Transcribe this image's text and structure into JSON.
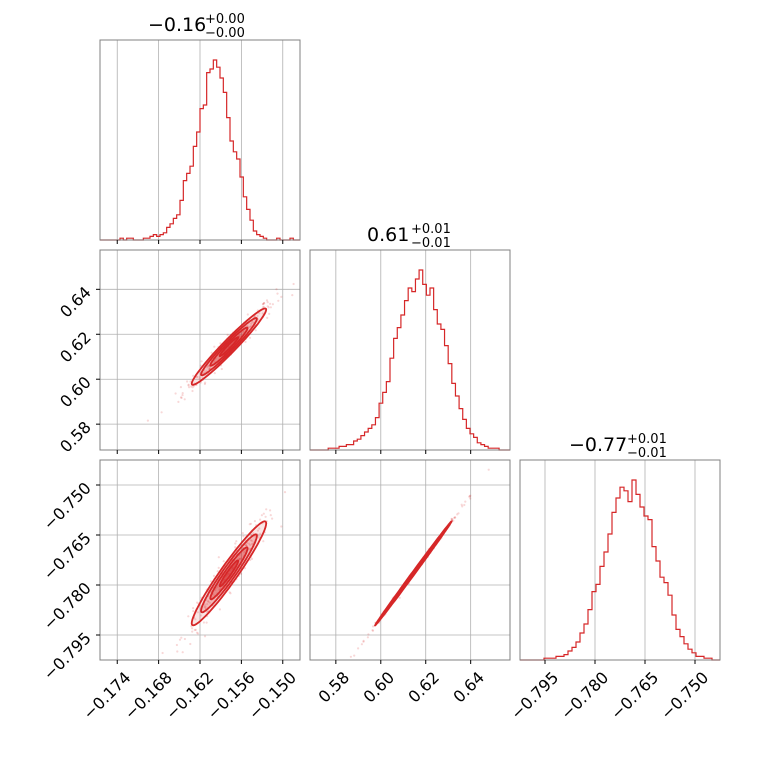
{
  "chart_data": {
    "type": "corner",
    "color": "#d62728",
    "grid": true,
    "parameters": [
      {
        "title": {
          "value": "−0.16",
          "plus": "+0.00",
          "minus": "−0.00"
        },
        "ticks": [
          -0.174,
          -0.168,
          -0.162,
          -0.156,
          -0.15
        ],
        "tick_labels": [
          "−0.174",
          "−0.168",
          "−0.162",
          "−0.156",
          "−0.150"
        ],
        "range": [
          -0.1765,
          -0.1475
        ],
        "hist_center": -0.1578,
        "hist_sigma": 0.0027,
        "hist_bins": [
          0,
          0,
          0,
          0,
          0,
          0,
          1,
          0,
          1,
          1,
          0,
          0,
          0,
          1,
          1,
          2,
          3,
          2,
          3,
          4,
          7,
          9,
          12,
          14,
          22,
          33,
          37,
          41,
          52,
          60,
          73,
          75,
          93,
          95,
          100,
          96,
          90,
          82,
          68,
          55,
          49,
          45,
          35,
          24,
          17,
          11,
          5,
          3,
          2,
          1,
          0,
          0,
          0,
          1,
          0,
          0,
          0,
          1,
          0,
          0
        ]
      },
      {
        "title": {
          "value": "0.61",
          "plus": "+0.01",
          "minus": "−0.01"
        },
        "ticks": [
          0.58,
          0.6,
          0.62,
          0.64
        ],
        "tick_labels": [
          "0.58",
          "0.60",
          "0.62",
          "0.64"
        ],
        "range": [
          0.5685,
          0.6575
        ],
        "hist_center": 0.6145,
        "hist_sigma": 0.0085,
        "hist_bins": [
          0,
          0,
          0,
          0,
          0,
          1,
          1,
          1,
          2,
          2,
          3,
          3,
          5,
          6,
          8,
          10,
          12,
          14,
          18,
          26,
          32,
          38,
          51,
          62,
          68,
          75,
          83,
          90,
          88,
          95,
          100,
          92,
          86,
          90,
          78,
          70,
          67,
          58,
          48,
          37,
          30,
          23,
          17,
          12,
          9,
          7,
          4,
          3,
          2,
          1,
          1,
          1,
          0,
          0,
          0
        ]
      },
      {
        "title": {
          "value": "−0.77",
          "plus": "+0.01",
          "minus": "−0.01"
        },
        "ticks": [
          -0.795,
          -0.78,
          -0.765,
          -0.75
        ],
        "tick_labels": [
          "−0.795",
          "−0.780",
          "−0.765",
          "−0.750"
        ],
        "range": [
          -0.8025,
          -0.7425
        ],
        "hist_center": -0.7765,
        "hist_sigma": 0.0078,
        "hist_bins": [
          0,
          0,
          0,
          0,
          0,
          0,
          1,
          1,
          1,
          2,
          2,
          3,
          5,
          7,
          10,
          15,
          20,
          28,
          38,
          42,
          52,
          60,
          70,
          82,
          90,
          96,
          94,
          88,
          100,
          92,
          85,
          80,
          78,
          63,
          55,
          46,
          43,
          36,
          25,
          17,
          13,
          9,
          6,
          4,
          2,
          2,
          1,
          1,
          0,
          0
        ]
      }
    ],
    "correlations": [
      {
        "pair": [
          0,
          1
        ],
        "rho": 0.97
      },
      {
        "pair": [
          0,
          2
        ],
        "rho": 0.96
      },
      {
        "pair": [
          1,
          2
        ],
        "rho": 0.999
      }
    ]
  }
}
